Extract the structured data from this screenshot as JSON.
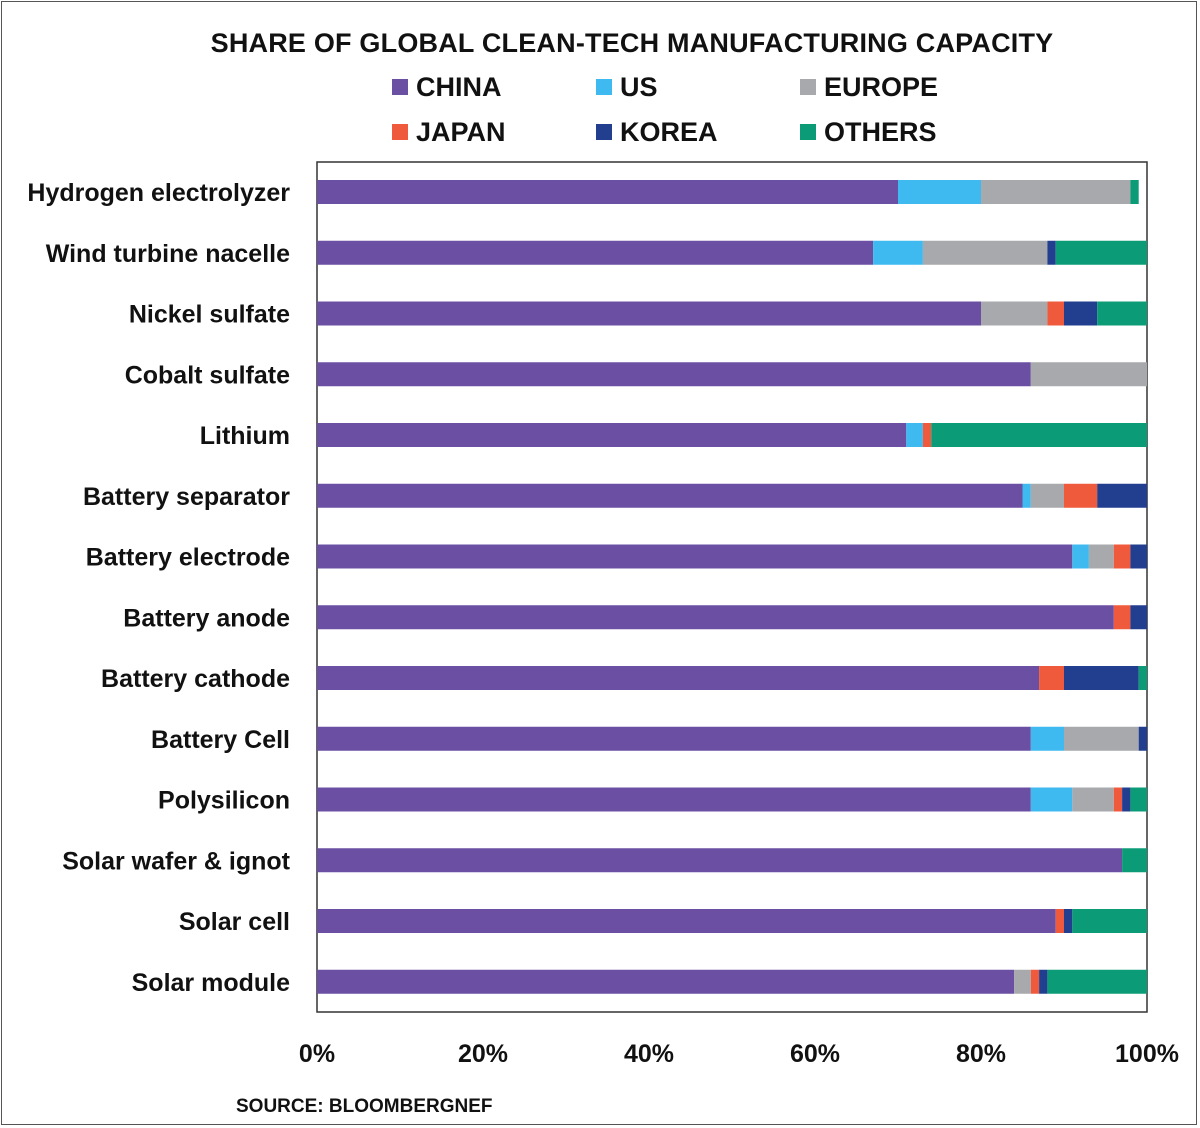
{
  "chart_data": {
    "type": "bar",
    "orientation": "horizontal",
    "stacked": true,
    "title": "SHARE OF GLOBAL CLEAN-TECH MANUFACTURING CAPACITY",
    "xlabel": "",
    "ylabel": "",
    "xlim": [
      0,
      100
    ],
    "ticks": [
      "0%",
      "20%",
      "40%",
      "60%",
      "80%",
      "100%"
    ],
    "grid": false,
    "legend_position": "top",
    "categories": [
      "Hydrogen electrolyzer",
      "Wind turbine nacelle",
      "Nickel sulfate",
      "Cobalt sulfate",
      "Lithium",
      "Battery separator",
      "Battery electrode",
      "Battery anode",
      "Battery cathode",
      "Battery Cell",
      "Polysilicon",
      "Solar wafer & ignot",
      "Solar cell",
      "Solar module"
    ],
    "series": [
      {
        "name": "CHINA",
        "color": "#6a4fa3",
        "values": [
          70,
          67,
          80,
          86,
          71,
          85,
          91,
          96,
          87,
          86,
          86,
          97,
          89,
          84
        ]
      },
      {
        "name": "US",
        "color": "#3ebaf0",
        "values": [
          10,
          6,
          0,
          0,
          2,
          1,
          2,
          0,
          0,
          4,
          5,
          0,
          0,
          0
        ]
      },
      {
        "name": "EUROPE",
        "color": "#a7a9ac",
        "values": [
          18,
          15,
          8,
          14,
          0,
          4,
          3,
          0,
          0,
          9,
          5,
          0,
          0,
          2
        ]
      },
      {
        "name": "JAPAN",
        "color": "#f05a3c",
        "values": [
          0,
          0,
          2,
          0,
          1,
          4,
          2,
          2,
          3,
          0,
          1,
          0,
          1,
          1
        ]
      },
      {
        "name": "KOREA",
        "color": "#223f8f",
        "values": [
          0,
          1,
          4,
          0,
          0,
          6,
          2,
          2,
          9,
          1,
          1,
          0,
          1,
          1
        ]
      },
      {
        "name": "OTHERS",
        "color": "#0c9b77",
        "values": [
          1,
          11,
          6,
          0,
          26,
          0,
          0,
          0,
          1,
          0,
          2,
          3,
          9,
          12
        ]
      }
    ],
    "source": "SOURCE: BLOOMBERGNEF"
  }
}
